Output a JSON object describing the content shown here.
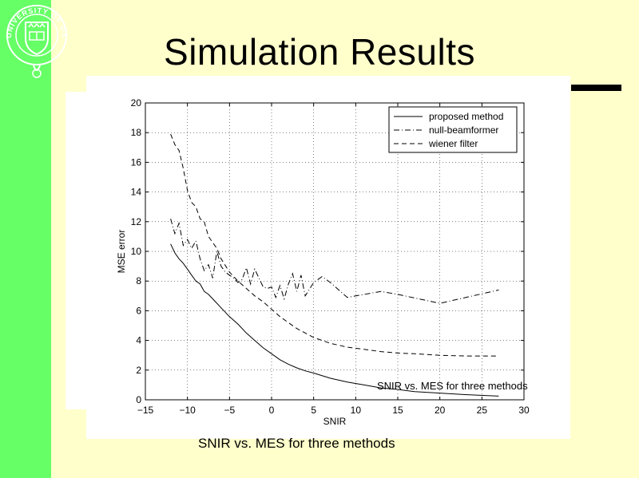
{
  "slide": {
    "title": "Simulation Results",
    "caption": "SNIR vs. MES for three methods",
    "logo_text": "UNIVERSITY OF OXFORD",
    "colors": {
      "sidebar": "#66ff66",
      "background": "#ffffcc",
      "plot": "#ffffff"
    }
  },
  "chart_data": {
    "type": "line",
    "title": "",
    "xlabel": "SNIR",
    "ylabel": "MSE error",
    "xlim": [
      -15,
      30
    ],
    "ylim": [
      0,
      20
    ],
    "xticks": [
      -15,
      -10,
      -5,
      0,
      5,
      10,
      15,
      20,
      25,
      30
    ],
    "yticks": [
      0,
      2,
      4,
      6,
      8,
      10,
      12,
      14,
      16,
      18,
      20
    ],
    "grid": true,
    "legend_position": "top-right",
    "annotation": "SNIR vs. MES for three methods",
    "series": [
      {
        "name": "proposed method",
        "style": "solid",
        "x": [
          -12,
          -11.5,
          -11,
          -10.5,
          -10,
          -9.5,
          -9,
          -8.5,
          -8,
          -7.5,
          -7,
          -6,
          -5,
          -4,
          -3,
          -2,
          -1,
          0,
          1,
          2,
          3,
          4,
          5,
          7,
          9,
          11,
          13,
          15,
          17,
          20,
          23,
          27
        ],
        "y": [
          10.5,
          9.9,
          9.5,
          9.2,
          8.8,
          8.4,
          8.0,
          7.8,
          7.3,
          7.1,
          6.8,
          6.2,
          5.6,
          5.1,
          4.5,
          4.0,
          3.5,
          3.1,
          2.7,
          2.4,
          2.15,
          1.95,
          1.8,
          1.45,
          1.2,
          1.0,
          0.8,
          0.7,
          0.55,
          0.45,
          0.35,
          0.25
        ]
      },
      {
        "name": "null-beamformer",
        "style": "dashdot",
        "x": [
          -12,
          -11.5,
          -11,
          -10.5,
          -10,
          -9.5,
          -9,
          -8.5,
          -8,
          -7.5,
          -7,
          -6.5,
          -6,
          -5.5,
          -5,
          -4.5,
          -4,
          -3.5,
          -3,
          -2.5,
          -2,
          -1.5,
          -1,
          -0.5,
          0,
          0.5,
          1,
          1.5,
          2,
          2.5,
          3,
          3.5,
          4,
          5,
          6,
          7,
          9,
          13,
          15,
          20,
          27
        ],
        "y": [
          12.2,
          11.2,
          11.9,
          10.4,
          10.8,
          10.2,
          10.7,
          9.5,
          8.7,
          9.1,
          8.2,
          10.0,
          9.0,
          8.6,
          8.4,
          8.2,
          7.9,
          8.1,
          8.9,
          7.8,
          8.8,
          8.2,
          7.6,
          7.5,
          7.6,
          6.9,
          7.7,
          6.8,
          7.8,
          8.5,
          7.3,
          8.4,
          7.0,
          7.9,
          8.3,
          7.9,
          6.9,
          7.3,
          7.1,
          6.5,
          7.4
        ]
      },
      {
        "name": "wiener filter",
        "style": "dashed",
        "x": [
          -12,
          -11.5,
          -11,
          -10.5,
          -10,
          -9.5,
          -9,
          -8.5,
          -8,
          -7.5,
          -7,
          -6.5,
          -6,
          -5,
          -4,
          -3,
          -2,
          -1,
          0,
          1,
          2,
          3,
          4,
          5,
          7,
          9,
          11,
          13,
          15,
          17,
          20,
          23,
          27
        ],
        "y": [
          17.9,
          17.2,
          16.8,
          15.6,
          14.1,
          13.3,
          13.0,
          12.2,
          12.0,
          11.0,
          10.6,
          10.2,
          9.5,
          8.6,
          8.0,
          7.5,
          7.0,
          6.6,
          6.1,
          5.6,
          5.2,
          4.8,
          4.5,
          4.2,
          3.8,
          3.55,
          3.4,
          3.25,
          3.15,
          3.1,
          3.0,
          2.95,
          2.95
        ]
      }
    ]
  }
}
